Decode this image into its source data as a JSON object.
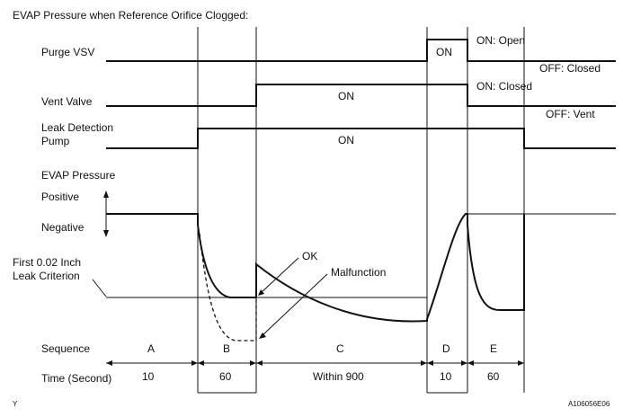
{
  "title": "EVAP Pressure when Reference Orifice Clogged:",
  "signals": {
    "purge_vsv": {
      "label": "Purge VSV",
      "on_text": "ON",
      "on_state": "ON: Open",
      "off_state": "OFF: Closed"
    },
    "vent_valve": {
      "label": "Vent Valve",
      "on_text": "ON",
      "on_state": "ON: Closed",
      "off_state": "OFF: Vent"
    },
    "leak_pump": {
      "label_line1": "Leak Detection",
      "label_line2": "Pump",
      "on_text": "ON"
    }
  },
  "pressure": {
    "label": "EVAP Pressure",
    "positive": "Positive",
    "negative": "Negative",
    "criterion_line1": "First 0.02 Inch",
    "criterion_line2": "Leak Criterion",
    "ok": "OK",
    "malfunction": "Malfunction"
  },
  "sequence": {
    "label": "Sequence",
    "phases": [
      "A",
      "B",
      "C",
      "D",
      "E"
    ]
  },
  "time": {
    "label": "Time (Second)",
    "durations": [
      "10",
      "60",
      "Within 900",
      "10",
      "60"
    ]
  },
  "footer": {
    "left": "Y",
    "right": "A106056E06"
  }
}
